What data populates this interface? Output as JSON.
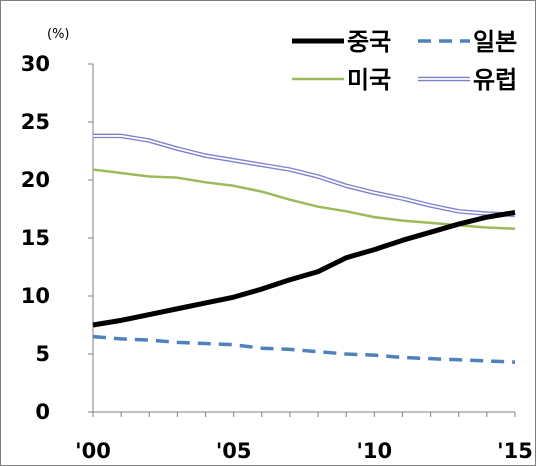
{
  "chart_data": {
    "type": "line",
    "unit_label": "(%)",
    "x": [
      2000,
      2001,
      2002,
      2003,
      2004,
      2005,
      2006,
      2007,
      2008,
      2009,
      2010,
      2011,
      2012,
      2013,
      2014,
      2015
    ],
    "x_tick_labels": [
      "'00",
      "'05",
      "'10",
      "'15"
    ],
    "y_ticks": [
      0,
      5,
      10,
      15,
      20,
      25,
      30
    ],
    "ylim": [
      0,
      30
    ],
    "grid": false,
    "legend_position": "top-right",
    "series": [
      {
        "name": "중국",
        "color": "#000000",
        "style": "solid-thick",
        "values": [
          7.5,
          7.9,
          8.4,
          8.9,
          9.4,
          9.9,
          10.6,
          11.4,
          12.1,
          13.3,
          14.0,
          14.8,
          15.5,
          16.2,
          16.8,
          17.2
        ]
      },
      {
        "name": "일본",
        "color": "#4f81bd",
        "style": "dashed",
        "values": [
          6.5,
          6.3,
          6.2,
          6.0,
          5.9,
          5.8,
          5.5,
          5.4,
          5.2,
          5.0,
          4.9,
          4.7,
          4.6,
          4.5,
          4.4,
          4.3
        ]
      },
      {
        "name": "미국",
        "color": "#9bbb59",
        "style": "solid",
        "values": [
          20.9,
          20.6,
          20.3,
          20.2,
          19.8,
          19.5,
          19.0,
          18.3,
          17.7,
          17.3,
          16.8,
          16.5,
          16.3,
          16.1,
          15.9,
          15.8
        ]
      },
      {
        "name": "유럽",
        "color": "#7f7fcf",
        "style": "double",
        "values": [
          23.8,
          23.8,
          23.4,
          22.7,
          22.1,
          21.7,
          21.3,
          20.9,
          20.3,
          19.5,
          18.9,
          18.4,
          17.8,
          17.3,
          17.1,
          17.0
        ]
      }
    ]
  }
}
